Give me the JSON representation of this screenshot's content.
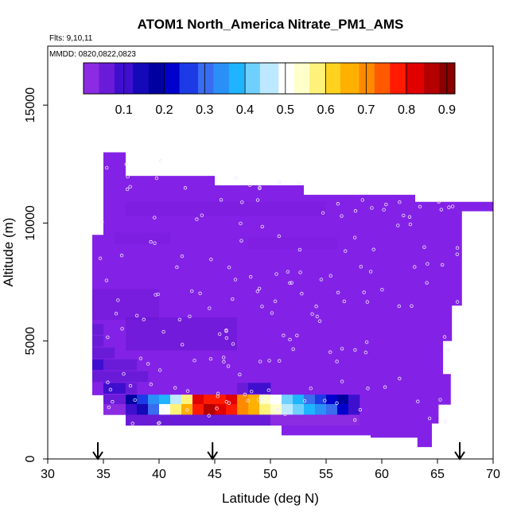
{
  "chart_data": {
    "type": "heatmap",
    "title": "ATOM1 North_America Nitrate_PM1_AMS",
    "flights_label": "Flts: 9,10,11",
    "dates_label": "MMDD: 0820,0822,0823",
    "xlabel": "Latitude (deg N)",
    "ylabel": "Altitude (m)",
    "xlim": [
      30,
      70
    ],
    "ylim": [
      0,
      17500
    ],
    "xticks": [
      "30",
      "35",
      "40",
      "45",
      "50",
      "55",
      "60",
      "65",
      "70"
    ],
    "yticks": [
      "0",
      "5000",
      "10000",
      "15000"
    ],
    "colorbar": {
      "range": [
        0,
        0.92
      ],
      "ticks": [
        "0.1",
        "0.2",
        "0.3",
        "0.4",
        "0.5",
        "0.6",
        "0.7",
        "0.8",
        "0.9"
      ],
      "colors": [
        "#8b2be2",
        "#6a1bd8",
        "#3f0fcf",
        "#1408b8",
        "#0000a0",
        "#0000cd",
        "#1c3ae6",
        "#3a6cf0",
        "#2a90f7",
        "#1eb4ff",
        "#6ed0ff",
        "#bce9ff",
        "#ffffff",
        "#ffffcc",
        "#fff27a",
        "#ffd21f",
        "#ffb000",
        "#ff8a00",
        "#ff5a00",
        "#ff1a00",
        "#e00000",
        "#b40000",
        "#8a0000"
      ]
    },
    "arrows_latitude": [
      34.5,
      44.8,
      67.0
    ],
    "cells_note_units": "latitude in deg N, altitude in m, value in ug/m3",
    "cells": [
      [
        35,
        2500,
        0.05
      ],
      [
        36,
        2500,
        0.04
      ],
      [
        37,
        2500,
        0.19
      ],
      [
        38,
        2500,
        0.27
      ],
      [
        39,
        2500,
        0.33
      ],
      [
        40,
        2500,
        0.38
      ],
      [
        41,
        2500,
        0.45
      ],
      [
        42,
        2500,
        0.58
      ],
      [
        43,
        2500,
        0.82
      ],
      [
        44,
        2500,
        0.76
      ],
      [
        45,
        2500,
        0.79
      ],
      [
        46,
        2500,
        0.82
      ],
      [
        47,
        2500,
        0.7
      ],
      [
        48,
        2500,
        0.64
      ],
      [
        49,
        2500,
        0.53
      ],
      [
        50,
        2500,
        0.48
      ],
      [
        51,
        2500,
        0.42
      ],
      [
        52,
        2500,
        0.37
      ],
      [
        53,
        2500,
        0.3
      ],
      [
        54,
        2500,
        0.26
      ],
      [
        55,
        2500,
        0.23
      ],
      [
        56,
        2500,
        0.16
      ],
      [
        57,
        2500,
        0.1
      ],
      [
        35,
        2100,
        0.01
      ],
      [
        36,
        2100,
        0.03
      ],
      [
        37,
        2100,
        0.09
      ],
      [
        38,
        2100,
        0.13
      ],
      [
        39,
        2100,
        0.28
      ],
      [
        40,
        2100,
        0.5
      ],
      [
        41,
        2100,
        0.56
      ],
      [
        42,
        2100,
        0.64
      ],
      [
        43,
        2100,
        0.78
      ],
      [
        44,
        2100,
        0.86
      ],
      [
        45,
        2100,
        0.8
      ],
      [
        46,
        2100,
        0.78
      ],
      [
        47,
        2100,
        0.69
      ],
      [
        48,
        2100,
        0.66
      ],
      [
        49,
        2100,
        0.6
      ],
      [
        50,
        2100,
        0.55
      ],
      [
        51,
        2100,
        0.47
      ],
      [
        52,
        2100,
        0.43
      ],
      [
        53,
        2100,
        0.37
      ],
      [
        54,
        2100,
        0.32
      ],
      [
        55,
        2100,
        0.28
      ],
      [
        56,
        2100,
        0.2
      ],
      [
        57,
        2100,
        0.09
      ],
      [
        37,
        1650,
        0.06
      ],
      [
        38,
        1650,
        0.07
      ],
      [
        39,
        1650,
        0.05
      ],
      [
        40,
        1650,
        0.06
      ],
      [
        41,
        1650,
        0.07
      ],
      [
        42,
        1650,
        0.06
      ],
      [
        43,
        1650,
        0.07
      ],
      [
        44,
        1650,
        0.06
      ],
      [
        45,
        1650,
        0.07
      ],
      [
        46,
        1650,
        0.06
      ],
      [
        47,
        1650,
        0.05
      ],
      [
        48,
        1650,
        0.04
      ],
      [
        49,
        1650,
        0.04
      ],
      [
        50,
        1650,
        0.03
      ],
      [
        51,
        1650,
        0.03
      ],
      [
        52,
        1650,
        0.03
      ],
      [
        53,
        1650,
        0.02
      ],
      [
        54,
        1650,
        0.02
      ],
      [
        55,
        1650,
        0.02
      ],
      [
        56,
        1650,
        0.02
      ],
      [
        57,
        1650,
        0.02
      ],
      [
        35,
        3000,
        0.1
      ],
      [
        36,
        3000,
        0.08
      ],
      [
        37,
        3000,
        0.05
      ],
      [
        47,
        3000,
        0.05
      ],
      [
        48,
        3000,
        0.1
      ],
      [
        49,
        3000,
        0.09
      ],
      [
        34,
        3500,
        0.07
      ],
      [
        35,
        3500,
        0.05
      ],
      [
        36,
        3500,
        0.06
      ],
      [
        37,
        3500,
        0.05
      ],
      [
        38,
        3500,
        0.04
      ],
      [
        34,
        4000,
        0.08
      ],
      [
        35,
        4000,
        0.06
      ],
      [
        36,
        4000,
        0.05
      ],
      [
        37,
        4000,
        0.04
      ],
      [
        34,
        4500,
        0.07
      ],
      [
        35,
        4500,
        0.05
      ],
      [
        34,
        5000,
        0.06
      ],
      [
        34,
        5500,
        0.05
      ]
    ]
  }
}
